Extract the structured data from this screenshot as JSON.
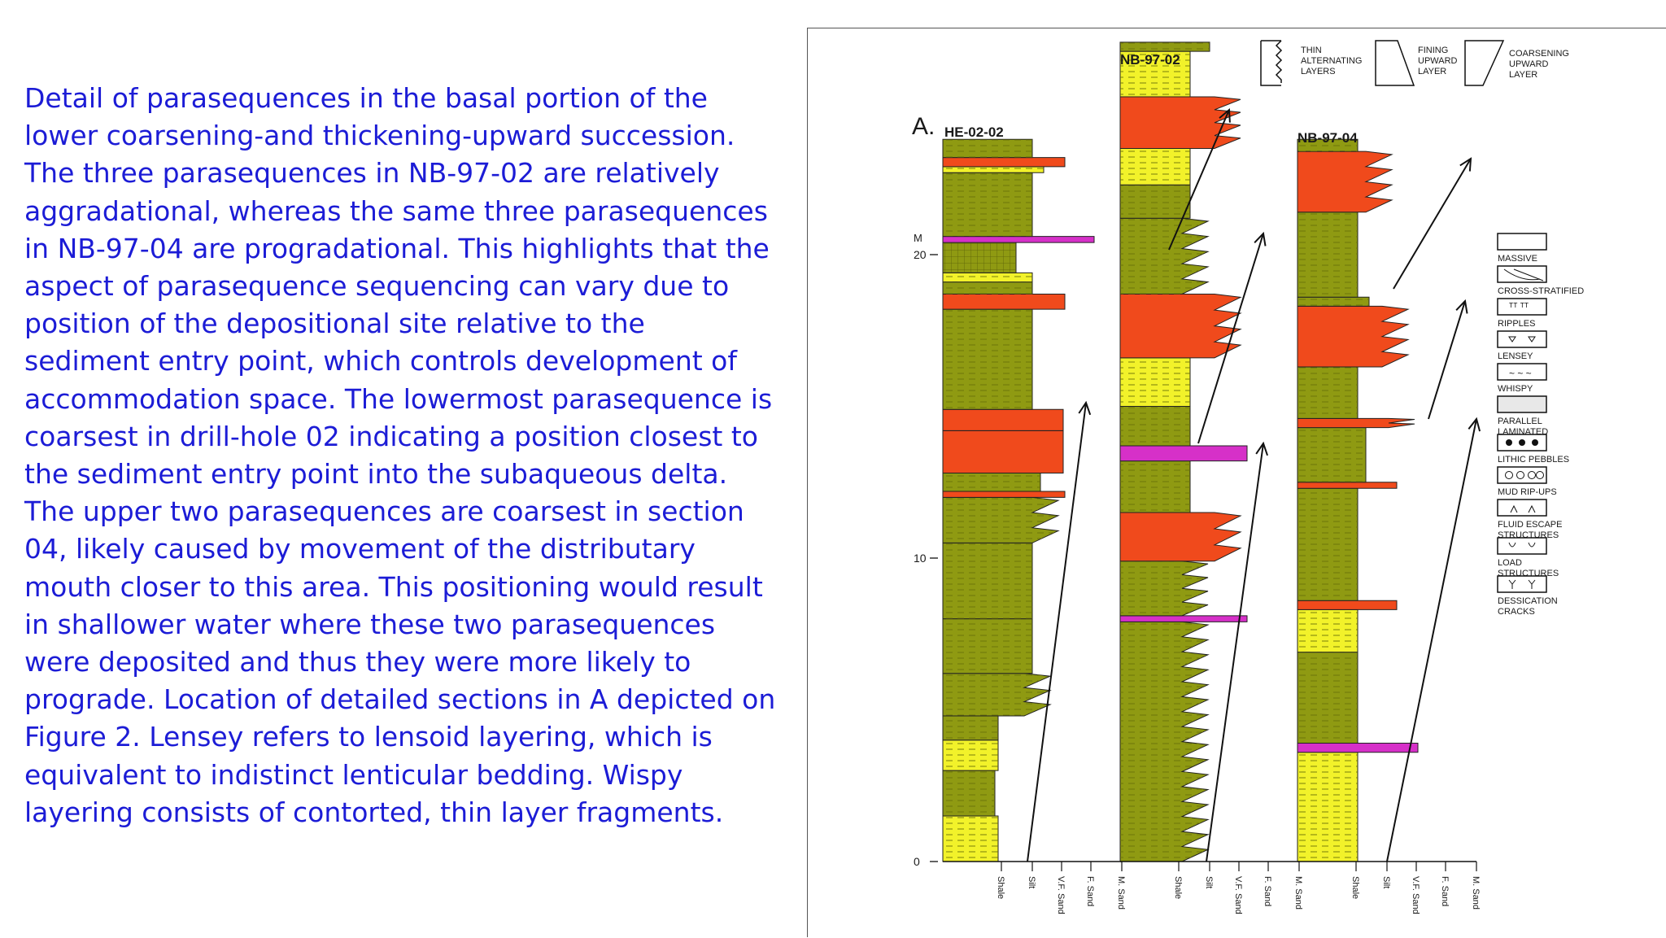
{
  "caption_lines": [
    "Detail of parasequences in the basal portion of the",
    "lower coarsening-and thickening-upward succession.",
    "The three parasequences in NB-97-02 are relatively",
    "aggradational, whereas the same three parasequences",
    "in NB-97-04 are progradational. This highlights that the",
    "aspect of parasequence sequencing can vary due to",
    "position of the depositional site relative to the",
    "sediment entry point, which controls development of",
    "accommodation space. The lowermost parasequence is",
    "coarsest in drill-hole 02 indicating a position closest to",
    "the sediment entry point into the subaqueous delta.",
    "The upper two parasequences are coarsest in section",
    "04, likely caused by movement of the distributary",
    "mouth closer to this area. This positioning would result",
    "in shallower water where these two parasequences",
    "were deposited and thus they were more likely to",
    "prograde. Location of detailed sections in A depicted on",
    "Figure 2. Lensey refers to lensoid layering, which is",
    "equivalent to indistinct lenticular bedding. Wispy",
    "layering consists of contorted, thin layer fragments."
  ],
  "figure": {
    "panel_label": "A.",
    "sections": [
      "HE-02-02",
      "NB-97-02",
      "NB-97-04"
    ],
    "scale_unit": "M",
    "scale_ticks": [
      "20",
      "10",
      "0"
    ],
    "grain_size_labels": [
      "Shale",
      "Silt",
      "V.F. Sand",
      "F. Sand",
      "M. Sand"
    ],
    "top_legend": {
      "thin_alternating": [
        "THIN",
        "ALTERNATING",
        "LAYERS"
      ],
      "fining_upward": [
        "FINING",
        "UPWARD",
        "LAYER"
      ],
      "coarsening_upward": [
        "COARSENING",
        "UPWARD",
        "LAYER"
      ]
    },
    "structure_legend": [
      {
        "lines": [
          "MASSIVE"
        ],
        "icon": "massive-icon"
      },
      {
        "lines": [
          "CROSS-STRATIFIED"
        ],
        "icon": "cross-stratified-icon"
      },
      {
        "lines": [
          "RIPPLES"
        ],
        "icon": "ripples-icon"
      },
      {
        "lines": [
          "LENSEY"
        ],
        "icon": "lensey-icon"
      },
      {
        "lines": [
          "WHISPY"
        ],
        "icon": "whispy-icon"
      },
      {
        "lines": [
          "PARALLEL",
          "LAMINATED"
        ],
        "icon": "parallel-laminated-icon"
      },
      {
        "lines": [
          "LITHIC PEBBLES"
        ],
        "icon": "lithic-pebbles-icon"
      },
      {
        "lines": [
          "MUD RIP-UPS"
        ],
        "icon": "mud-rip-ups-icon"
      },
      {
        "lines": [
          "FLUID ESCAPE",
          "STRUCTURES"
        ],
        "icon": "fluid-escape-icon"
      },
      {
        "lines": [
          "LOAD",
          "STRUCTURES"
        ],
        "icon": "load-structures-icon"
      },
      {
        "lines": [
          "DESSICATION",
          "CRACKS"
        ],
        "icon": "dessication-cracks-icon"
      }
    ],
    "colors": {
      "olive": "#8f9a12",
      "yellow": "#f2f22a",
      "orange": "#f04a1c",
      "magenta": "#d630c8",
      "text": "#1c1cd6"
    }
  }
}
